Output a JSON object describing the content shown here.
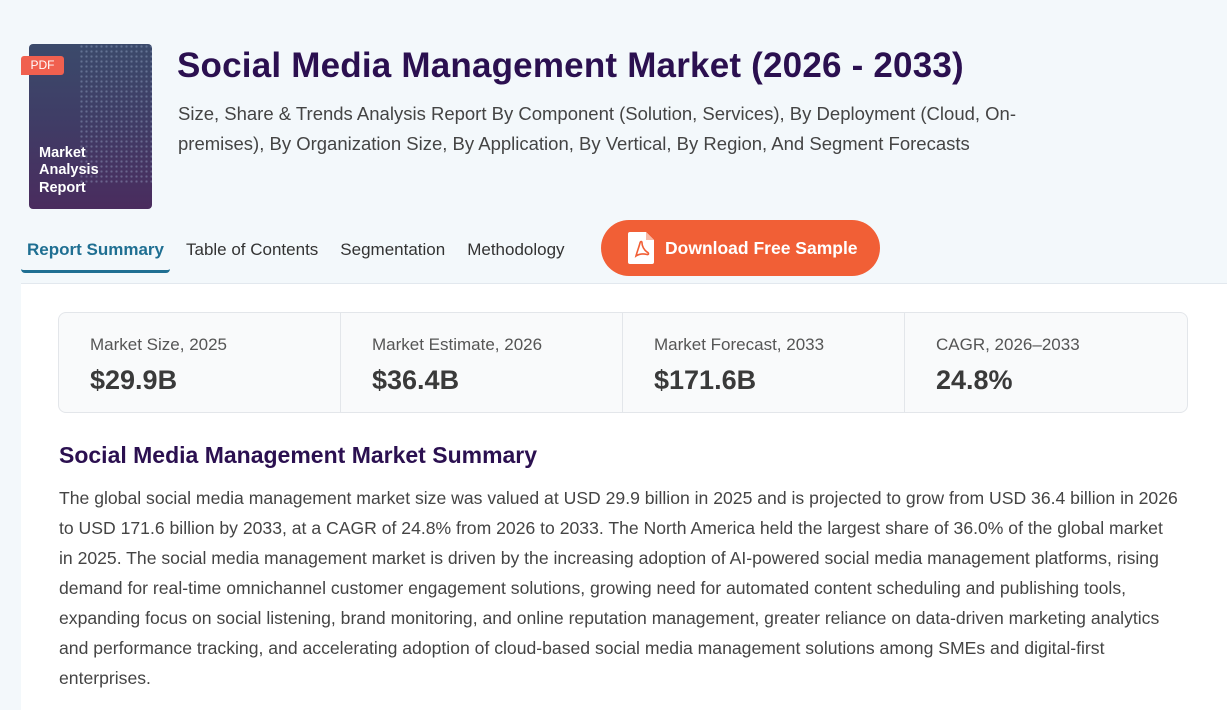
{
  "cover": {
    "badge": "PDF",
    "line1": "Market",
    "line2": "Analysis",
    "line3": "Report"
  },
  "header": {
    "title": "Social Media Management Market (2026 - 2033)",
    "subtitle": "Size, Share & Trends Analysis Report By Component (Solution, Services), By Deployment (Cloud, On-premises), By Organization Size, By Application, By Vertical, By Region, And Segment Forecasts"
  },
  "tabs": [
    {
      "label": "Report Summary",
      "active": true
    },
    {
      "label": "Table of Contents",
      "active": false
    },
    {
      "label": "Segmentation",
      "active": false
    },
    {
      "label": "Methodology",
      "active": false
    }
  ],
  "download": {
    "label": "Download Free Sample",
    "icon": "pdf-file-icon",
    "color": "#f15f36"
  },
  "stats": [
    {
      "label": "Market Size, 2025",
      "value": "$29.9B"
    },
    {
      "label": "Market Estimate, 2026",
      "value": "$36.4B"
    },
    {
      "label": "Market Forecast, 2033",
      "value": "$171.6B"
    },
    {
      "label": "CAGR, 2026–2033",
      "value": "24.8%"
    }
  ],
  "summary": {
    "title": "Social Media Management Market Summary",
    "text": "The global social media management market size was valued at USD 29.9 billion in 2025 and is projected to grow from USD 36.4 billion in 2026 to USD 171.6 billion by 2033, at a CAGR of 24.8% from 2026 to 2033. The North America held the largest share of 36.0% of the global market in 2025. The social media management market is driven by the increasing adoption of AI-powered social media management platforms, rising demand for real-time omnichannel customer engagement solutions, growing need for automated content scheduling and publishing tools, expanding focus on social listening, brand monitoring, and online reputation management, greater reliance on data-driven marketing analytics and performance tracking, and accelerating adoption of cloud-based social media management solutions among SMEs and digital-first enterprises."
  },
  "colors": {
    "title": "#2b1050",
    "accent": "#1f6f92",
    "button": "#f15f36"
  }
}
